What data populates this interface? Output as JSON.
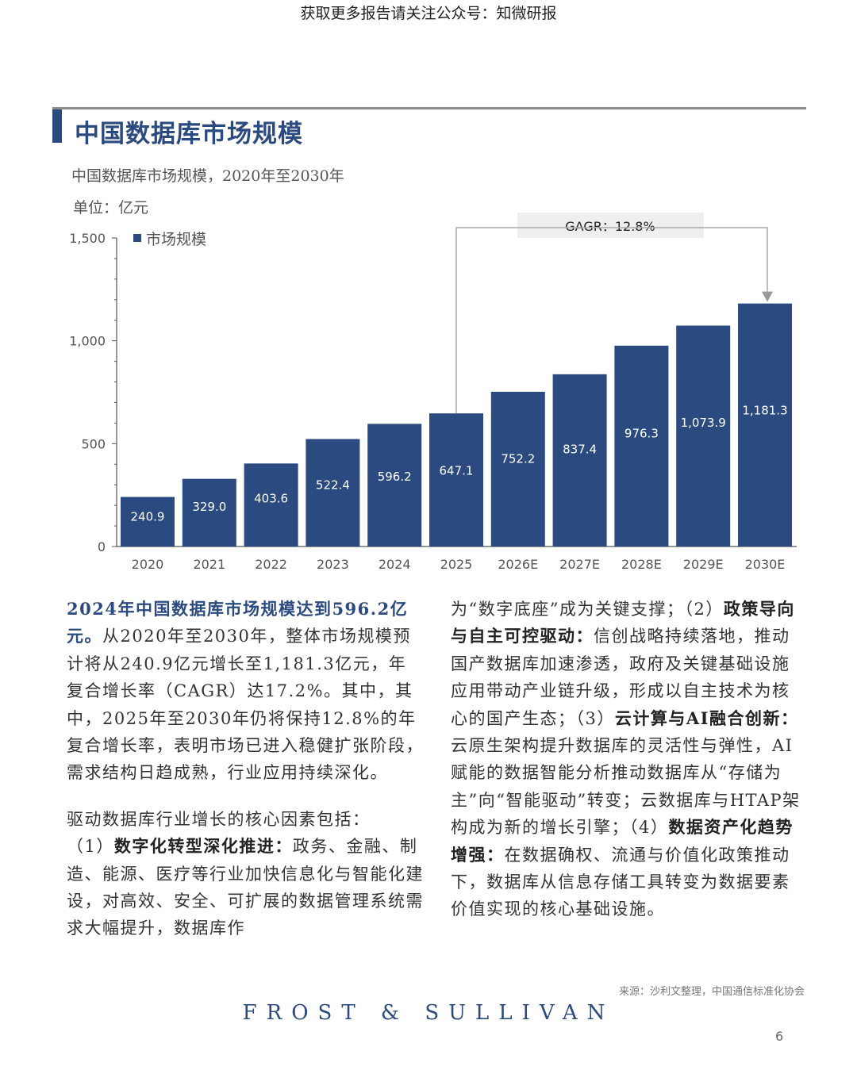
{
  "banner": "获取更多报告请关注公众号：知微研报",
  "page_title": "中国数据库市场规模",
  "subtitle": "中国数据库市场规模，2020年至2030年",
  "unit": "单位：亿元",
  "legend": "市场规模",
  "gagr_label": "GAGR：12.8%",
  "colors": {
    "bar": "#2b4a7f",
    "accent": "#2b4a7f",
    "axis": "#555555"
  },
  "chart_data": {
    "type": "bar",
    "title": "中国数据库市场规模，2020年至2030年",
    "ylabel": "单位：亿元",
    "categories": [
      "2020",
      "2021",
      "2022",
      "2023",
      "2024",
      "2025",
      "2026E",
      "2027E",
      "2028E",
      "2029E",
      "2030E"
    ],
    "series": [
      {
        "name": "市场规模",
        "values": [
          240.9,
          329.0,
          403.6,
          522.4,
          596.2,
          647.1,
          752.2,
          837.4,
          976.3,
          1073.9,
          1181.3
        ]
      }
    ],
    "data_labels": [
      "240.9",
      "329.0",
      "403.6",
      "522.4",
      "596.2",
      "647.1",
      "752.2",
      "837.4",
      "976.3",
      "1,073.9",
      "1,181.3"
    ],
    "ylim": [
      0,
      1500
    ],
    "yticks": [
      0,
      500,
      1000,
      1500
    ],
    "ytick_labels": [
      "0",
      "500",
      "1,000",
      "1,500"
    ],
    "grid": false,
    "legend_position": "top-left",
    "annotation": {
      "text": "GAGR：12.8%",
      "from": "2025",
      "to": "2030E"
    }
  },
  "left_col": {
    "para1_hl": "2024年中国数据库市场规模达到596.2亿元。",
    "para1_rest": "从2020年至2030年，整体市场规模预计将从240.9亿元增长至1,181.3亿元，年复合增长率（CAGR）达17.2%。其中，其中，2025年至2030年仍将保持12.8%的年复合增长率，表明市场已进入稳健扩张阶段，需求结构日趋成熟，行业应用持续深化。",
    "para2_intro": "驱动数据库行业增长的核心因素包括：",
    "p1_num": "（1）",
    "p1_title": "数字化转型深化推进：",
    "p1_text": "政务、金融、制造、能源、医疗等行业加快信息化与智能化建设，对高效、安全、可扩展的数据管理系统需求大幅提升，数据库作"
  },
  "right_col": {
    "p1_cont": "为“数字底座”成为关键支撑；",
    "p2_num": "（2）",
    "p2_title": "政策导向与自主可控驱动：",
    "p2_text": "信创战略持续落地，推动国产数据库加速渗透，政府及关键基础设施应用带动产业链升级，形成以自主技术为核心的国产生态；",
    "p3_num": "（3）",
    "p3_title": "云计算与AI融合创新：",
    "p3_text": "云原生架构提升数据库的灵活性与弹性，AI赋能的数据智能分析推动数据库从“存储为主”向“智能驱动”转变；云数据库与HTAP架构成为新的增长引擎；",
    "p4_num": "（4）",
    "p4_title": "数据资产化趋势增强：",
    "p4_text": "在数据确权、流通与价值化政策推动下，数据库从信息存储工具转变为数据要素价值实现的核心基础设施。"
  },
  "source": "来源：沙利文整理，中国通信标准化协会",
  "logo_text": "FROST & SULLIVAN",
  "page_number": "6"
}
